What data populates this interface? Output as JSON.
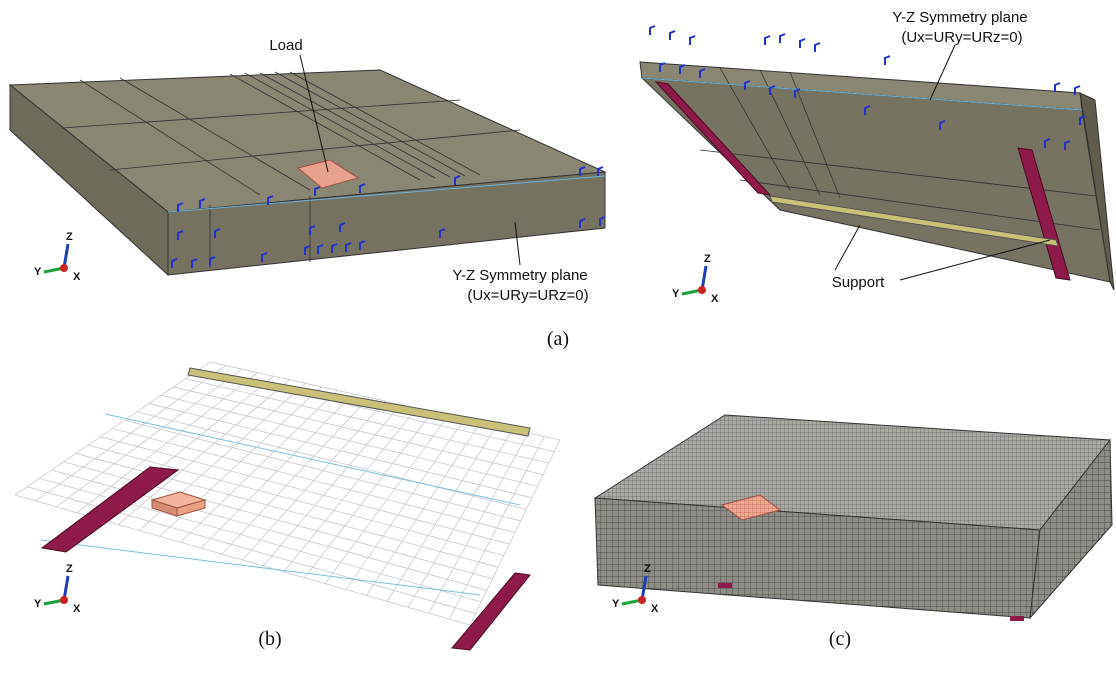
{
  "panel_a": {
    "caption": "(a)",
    "left_view": {
      "load_label": "Load",
      "symmetry_label": "Y-Z Symmetry plane",
      "symmetry_condition": "(Ux=URy=URz=0)",
      "triad": {
        "x": "X",
        "y": "Y",
        "z": "Z"
      }
    },
    "right_view": {
      "symmetry_label": "Y-Z Symmetry plane",
      "symmetry_condition": "(Ux=URy=URz=0)",
      "support_label": "Support",
      "triad": {
        "x": "X",
        "y": "Y",
        "z": "Z"
      }
    }
  },
  "panel_b": {
    "caption": "(b)",
    "triad": {
      "x": "X",
      "y": "Y",
      "z": "Z"
    }
  },
  "panel_c": {
    "caption": "(c)",
    "triad": {
      "x": "X",
      "y": "Y",
      "z": "Z"
    }
  }
}
